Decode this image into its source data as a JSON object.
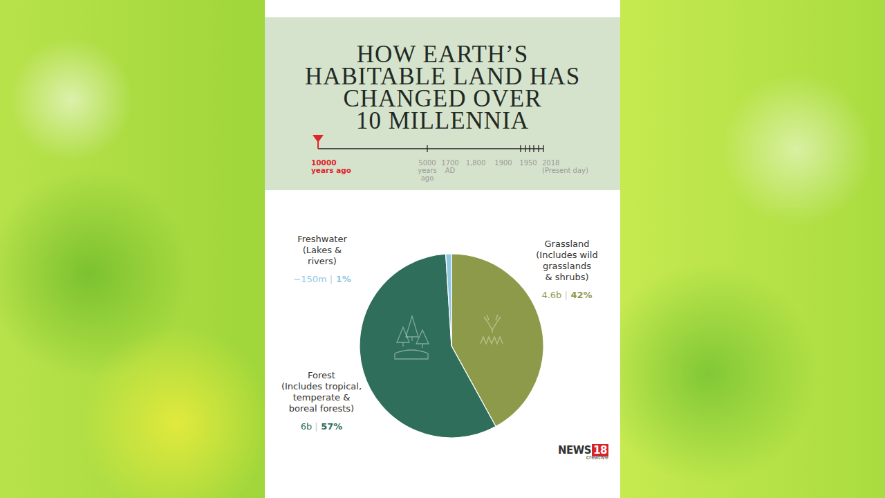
{
  "chart_data": {
    "type": "pie",
    "title": [
      "HOW EARTH’S",
      "HABITABLE LAND HAS",
      "CHANGED OVER",
      "10 MILLENNIA"
    ],
    "timeline": [
      [
        "10000",
        "years ago"
      ],
      [
        "5000",
        "years",
        "ago"
      ],
      [
        "1700",
        "AD"
      ],
      [
        "1,800"
      ],
      [
        "1900"
      ],
      [
        "1950"
      ],
      [
        "2018",
        "(Present day)"
      ]
    ],
    "categories": [
      "Grassland",
      "Forest",
      "Freshwater"
    ],
    "descriptions": [
      [
        "(Includes wild",
        "grasslands",
        "& shrubs)"
      ],
      [
        "(Includes tropical,",
        "temperate &",
        "boreal forests)"
      ],
      [
        "(Lakes &",
        "rivers)"
      ]
    ],
    "amounts": [
      "4.6b",
      "6b",
      "~150m"
    ],
    "separator": "|",
    "values": [
      42,
      57,
      1
    ],
    "value_labels": [
      "42%",
      "57%",
      "1%"
    ],
    "colors": [
      "#8d9a4a",
      "#2e6e5a",
      "#8ec6e6"
    ],
    "data_labels": true,
    "logo": [
      "NEWS",
      "18",
      "creative"
    ]
  }
}
